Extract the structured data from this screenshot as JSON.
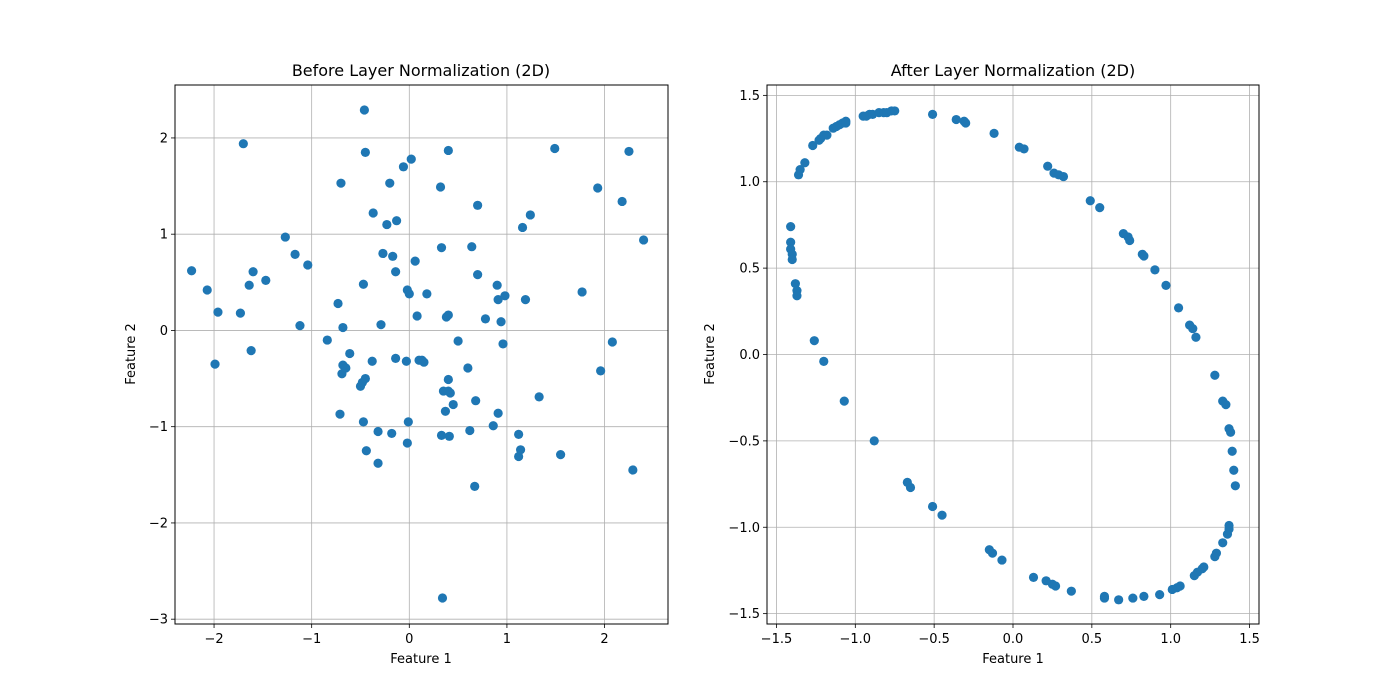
{
  "chart_data": [
    {
      "type": "scatter",
      "title": "Before Layer Normalization (2D)",
      "xlabel": "Feature 1",
      "ylabel": "Feature 2",
      "xlim": [
        -2.4,
        2.65
      ],
      "ylim": [
        -3.05,
        2.55
      ],
      "xticks": [
        -2,
        -1,
        0,
        1,
        2
      ],
      "yticks": [
        -3,
        -2,
        -1,
        0,
        1,
        2
      ],
      "xtick_labels": [
        "−2",
        "−1",
        "0",
        "1",
        "2"
      ],
      "ytick_labels": [
        "−3",
        "−2",
        "−1",
        "0",
        "1",
        "2"
      ],
      "grid": true,
      "color": "#1f77b4",
      "x": [
        -2.23,
        -2.07,
        -1.96,
        -1.99,
        -1.73,
        -1.7,
        -1.64,
        -1.6,
        -1.62,
        -1.47,
        -1.27,
        -1.17,
        -1.04,
        -1.12,
        -0.84,
        -0.73,
        -0.7,
        -0.68,
        -0.68,
        -0.69,
        -0.65,
        -0.61,
        -0.71,
        -0.5,
        -0.48,
        -0.45,
        -0.46,
        -0.45,
        -0.47,
        -0.47,
        -0.44,
        -0.37,
        -0.32,
        -0.29,
        -0.27,
        -0.23,
        -0.2,
        -0.18,
        -0.17,
        -0.14,
        -0.13,
        -0.14,
        -0.32,
        -0.38,
        -0.06,
        -0.02,
        -0.01,
        0.0,
        -0.02,
        -0.03,
        0.02,
        0.06,
        0.08,
        0.1,
        0.13,
        0.15,
        0.18,
        0.32,
        0.33,
        0.35,
        0.37,
        0.4,
        0.4,
        0.42,
        0.45,
        0.4,
        0.38,
        0.4,
        0.41,
        0.33,
        0.34,
        0.5,
        0.6,
        0.62,
        0.64,
        0.67,
        0.7,
        0.7,
        0.68,
        0.78,
        0.86,
        0.9,
        0.91,
        0.91,
        0.94,
        0.96,
        0.98,
        1.12,
        1.12,
        1.14,
        1.16,
        1.19,
        1.24,
        1.33,
        1.49,
        1.55,
        1.77,
        1.93,
        1.96,
        2.08,
        2.18,
        2.25,
        2.29,
        2.4
      ],
      "y": [
        0.62,
        0.42,
        0.19,
        -0.35,
        0.18,
        1.94,
        0.47,
        0.61,
        -0.21,
        0.52,
        0.97,
        0.79,
        0.68,
        0.05,
        -0.1,
        0.28,
        1.53,
        0.03,
        -0.36,
        -0.45,
        -0.39,
        -0.24,
        -0.87,
        -0.58,
        -0.54,
        -0.5,
        2.29,
        1.85,
        0.48,
        -0.95,
        -1.25,
        1.22,
        -1.38,
        0.06,
        0.8,
        1.1,
        1.53,
        -1.07,
        0.77,
        0.61,
        1.14,
        -0.29,
        -1.05,
        -0.32,
        1.7,
        0.42,
        -0.95,
        0.38,
        -1.17,
        -0.32,
        1.78,
        0.72,
        0.15,
        -0.31,
        -0.31,
        -0.33,
        0.38,
        1.49,
        0.86,
        -0.63,
        -0.84,
        -0.51,
        -0.63,
        -0.65,
        -0.77,
        1.87,
        0.14,
        0.16,
        -1.1,
        -1.09,
        -2.78,
        -0.11,
        -0.39,
        -1.04,
        0.87,
        -1.62,
        0.58,
        1.3,
        -0.73,
        0.12,
        -0.99,
        0.47,
        0.32,
        -0.86,
        0.09,
        -0.14,
        0.36,
        -1.08,
        -1.31,
        -1.24,
        1.07,
        0.32,
        1.2,
        -0.69,
        1.89,
        -1.29,
        0.4,
        1.48,
        -0.42,
        -0.12,
        1.34,
        1.86,
        -1.45,
        0.94
      ]
    },
    {
      "type": "scatter",
      "title": "After Layer Normalization (2D)",
      "xlabel": "Feature 1",
      "ylabel": "Feature 2",
      "xlim": [
        -1.56,
        1.56
      ],
      "ylim": [
        -1.56,
        1.56
      ],
      "xticks": [
        -1.5,
        -1.0,
        -0.5,
        0.0,
        0.5,
        1.0,
        1.5
      ],
      "yticks": [
        -1.5,
        -1.0,
        -0.5,
        0.0,
        0.5,
        1.0,
        1.5
      ],
      "xtick_labels": [
        "−1.5",
        "−1.0",
        "−0.5",
        "0.0",
        "0.5",
        "1.0",
        "1.5"
      ],
      "ytick_labels": [
        "−1.5",
        "−1.0",
        "−0.5",
        "0.0",
        "0.5",
        "1.0",
        "1.5"
      ],
      "grid": true,
      "color": "#1f77b4",
      "x": [
        -1.41,
        -1.41,
        -1.41,
        -1.4,
        -1.4,
        -1.38,
        -1.37,
        -1.37,
        -1.36,
        -1.35,
        -1.32,
        -1.27,
        -1.23,
        -1.22,
        -1.2,
        -1.18,
        -1.14,
        -1.12,
        -1.1,
        -1.08,
        -1.06,
        -1.06,
        -0.95,
        -0.93,
        -0.91,
        -0.89,
        -0.85,
        -0.82,
        -0.8,
        -0.77,
        -0.75,
        -0.51,
        -0.36,
        -0.31,
        -0.3,
        -0.12,
        0.04,
        0.07,
        0.22,
        0.26,
        0.29,
        0.32,
        0.49,
        0.55,
        0.7,
        0.73,
        0.74,
        0.82,
        0.83,
        0.9,
        0.97,
        1.05,
        1.12,
        1.14,
        1.16,
        1.28,
        1.33,
        1.35,
        1.37,
        1.38,
        1.39,
        1.4,
        1.41,
        1.37,
        1.37,
        1.36,
        1.33,
        1.29,
        1.28,
        1.21,
        1.2,
        1.17,
        1.15,
        1.06,
        1.04,
        1.01,
        0.93,
        0.83,
        0.76,
        0.67,
        0.58,
        0.58,
        0.37,
        0.27,
        0.25,
        0.21,
        0.13,
        -0.07,
        -0.13,
        -0.15,
        -0.45,
        -0.51,
        -0.65,
        -0.67,
        -0.88,
        -1.07,
        -1.2,
        -1.26
      ],
      "y": [
        0.74,
        0.65,
        0.61,
        0.58,
        0.55,
        0.41,
        0.37,
        0.34,
        1.04,
        1.07,
        1.11,
        1.21,
        1.24,
        1.25,
        1.27,
        1.27,
        1.31,
        1.32,
        1.33,
        1.34,
        1.35,
        1.34,
        1.38,
        1.38,
        1.39,
        1.39,
        1.4,
        1.4,
        1.4,
        1.41,
        1.41,
        1.39,
        1.36,
        1.35,
        1.34,
        1.28,
        1.2,
        1.19,
        1.09,
        1.05,
        1.04,
        1.03,
        0.89,
        0.85,
        0.7,
        0.68,
        0.66,
        0.58,
        0.57,
        0.49,
        0.4,
        0.27,
        0.17,
        0.15,
        0.1,
        -0.12,
        -0.27,
        -0.29,
        -0.43,
        -0.45,
        -0.56,
        -0.67,
        -0.76,
        -0.99,
        -1.01,
        -1.04,
        -1.09,
        -1.15,
        -1.17,
        -1.23,
        -1.24,
        -1.26,
        -1.28,
        -1.34,
        -1.35,
        -1.36,
        -1.39,
        -1.4,
        -1.41,
        -1.42,
        -1.41,
        -1.4,
        -1.37,
        -1.34,
        -1.33,
        -1.31,
        -1.29,
        -1.19,
        -1.15,
        -1.13,
        -0.93,
        -0.88,
        -0.77,
        -0.74,
        -0.5,
        -0.27,
        -0.04,
        0.08
      ]
    }
  ]
}
